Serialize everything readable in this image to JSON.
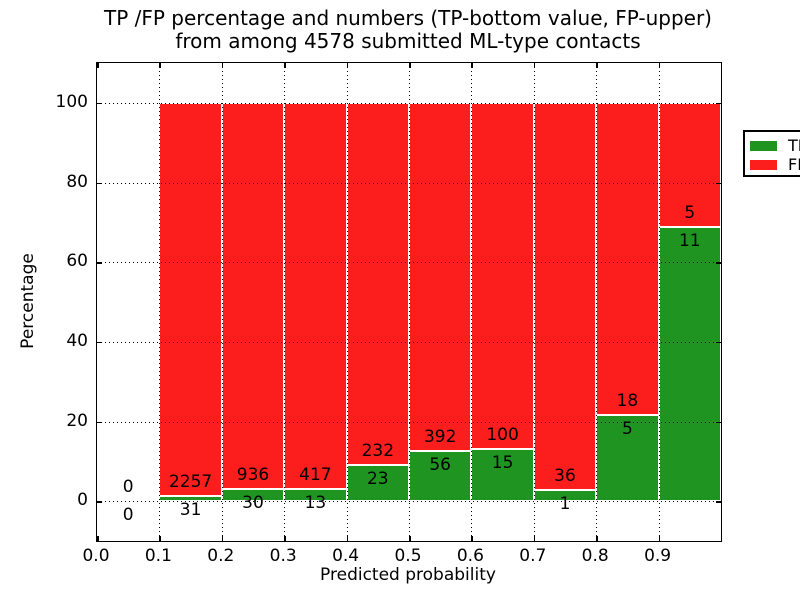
{
  "figure": {
    "title_line1": "TP /FP percentage and numbers (TP-bottom value, FP-upper)",
    "title_line2": "from among 4578 submitted ML-type contacts"
  },
  "chart_data": {
    "type": "bar",
    "stacked": true,
    "title": "TP /FP percentage and numbers (TP-bottom value, FP-upper)\nfrom among 4578 submitted ML-type contacts",
    "xlabel": "Predicted probability",
    "ylabel": "Percentage",
    "xlim": [
      0.0,
      1.0
    ],
    "ylim": [
      -10,
      110
    ],
    "grid": "dotted",
    "legend_position": "upper right",
    "xticks": {
      "values": [
        0.0,
        0.1,
        0.2,
        0.3,
        0.4,
        0.5,
        0.6,
        0.7,
        0.8,
        0.9
      ],
      "labels": [
        "0.0",
        "0.1",
        "0.2",
        "0.3",
        "0.4",
        "0.5",
        "0.6",
        "0.7",
        "0.8",
        "0.9"
      ]
    },
    "yticks": {
      "values": [
        0,
        20,
        40,
        60,
        80,
        100
      ],
      "labels": [
        "0",
        "20",
        "40",
        "60",
        "80",
        "100"
      ]
    },
    "legend": [
      {
        "label": "TP",
        "color": "#1f9421"
      },
      {
        "label": "FP",
        "color": "#fc1d1d"
      }
    ],
    "colors": {
      "tp": "#1f9421",
      "fp": "#fc1d1d",
      "grid": "#000000",
      "text": "#000000",
      "background": "#ffffff"
    },
    "annotation_offset": 3.5,
    "bars": [
      {
        "x0": 0.0,
        "x1": 0.1,
        "tp": 0,
        "fp": 0
      },
      {
        "x0": 0.1,
        "x1": 0.2,
        "tp": 31,
        "fp": 2257
      },
      {
        "x0": 0.2,
        "x1": 0.3,
        "tp": 30,
        "fp": 936
      },
      {
        "x0": 0.3,
        "x1": 0.4,
        "tp": 13,
        "fp": 417
      },
      {
        "x0": 0.4,
        "x1": 0.5,
        "tp": 23,
        "fp": 232
      },
      {
        "x0": 0.5,
        "x1": 0.6,
        "tp": 56,
        "fp": 392
      },
      {
        "x0": 0.6,
        "x1": 0.7,
        "tp": 15,
        "fp": 100
      },
      {
        "x0": 0.7,
        "x1": 0.8,
        "tp": 1,
        "fp": 36
      },
      {
        "x0": 0.8,
        "x1": 0.9,
        "tp": 5,
        "fp": 18
      },
      {
        "x0": 0.9,
        "x1": 1.0,
        "tp": 11,
        "fp": 5
      }
    ],
    "series": [
      {
        "name": "TP",
        "values": [
          0,
          31,
          30,
          13,
          23,
          56,
          15,
          1,
          5,
          11
        ]
      },
      {
        "name": "FP",
        "values": [
          0,
          2257,
          936,
          417,
          232,
          392,
          100,
          36,
          18,
          5
        ]
      }
    ]
  }
}
